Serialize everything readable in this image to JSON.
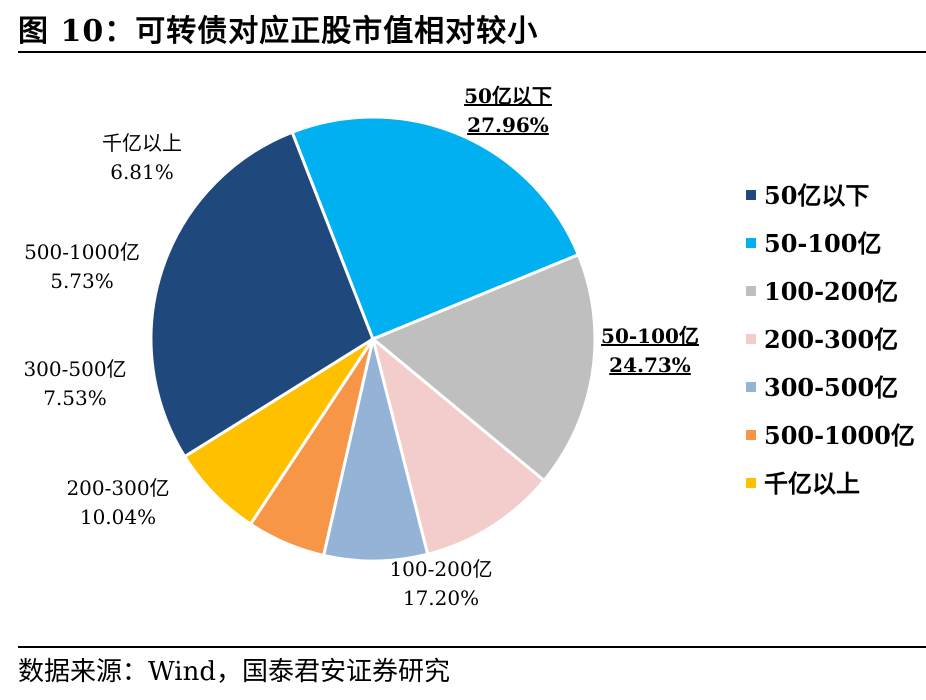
{
  "title": "图 10：可转债对应正股市值相对较小",
  "source": "数据来源：Wind，国泰君安证券研究",
  "chart_data": {
    "type": "pie",
    "title": "图 10：可转债对应正股市值相对较小",
    "legend_position": "right",
    "slices": [
      {
        "label": "50亿以下",
        "value": 27.96,
        "display": "27.96%",
        "color": "#1F497D"
      },
      {
        "label": "50-100亿",
        "value": 24.73,
        "display": "24.73%",
        "color": "#00B0F0"
      },
      {
        "label": "100-200亿",
        "value": 17.2,
        "display": "17.20%",
        "color": "#BFBFBF"
      },
      {
        "label": "200-300亿",
        "value": 10.04,
        "display": "10.04%",
        "color": "#F2CDCC"
      },
      {
        "label": "300-500亿",
        "value": 7.53,
        "display": "7.53%",
        "color": "#95B3D7"
      },
      {
        "label": "500-1000亿",
        "value": 5.73,
        "display": "5.73%",
        "color": "#F79646"
      },
      {
        "label": "千亿以上",
        "value": 6.81,
        "display": "6.81%",
        "color": "#FFC000"
      }
    ],
    "legend": [
      "50亿以下",
      "50-100亿",
      "100-200亿",
      "200-300亿",
      "300-500亿",
      "500-1000亿",
      "千亿以上"
    ],
    "emphasized_labels": [
      "50亿以下",
      "50-100亿"
    ]
  }
}
